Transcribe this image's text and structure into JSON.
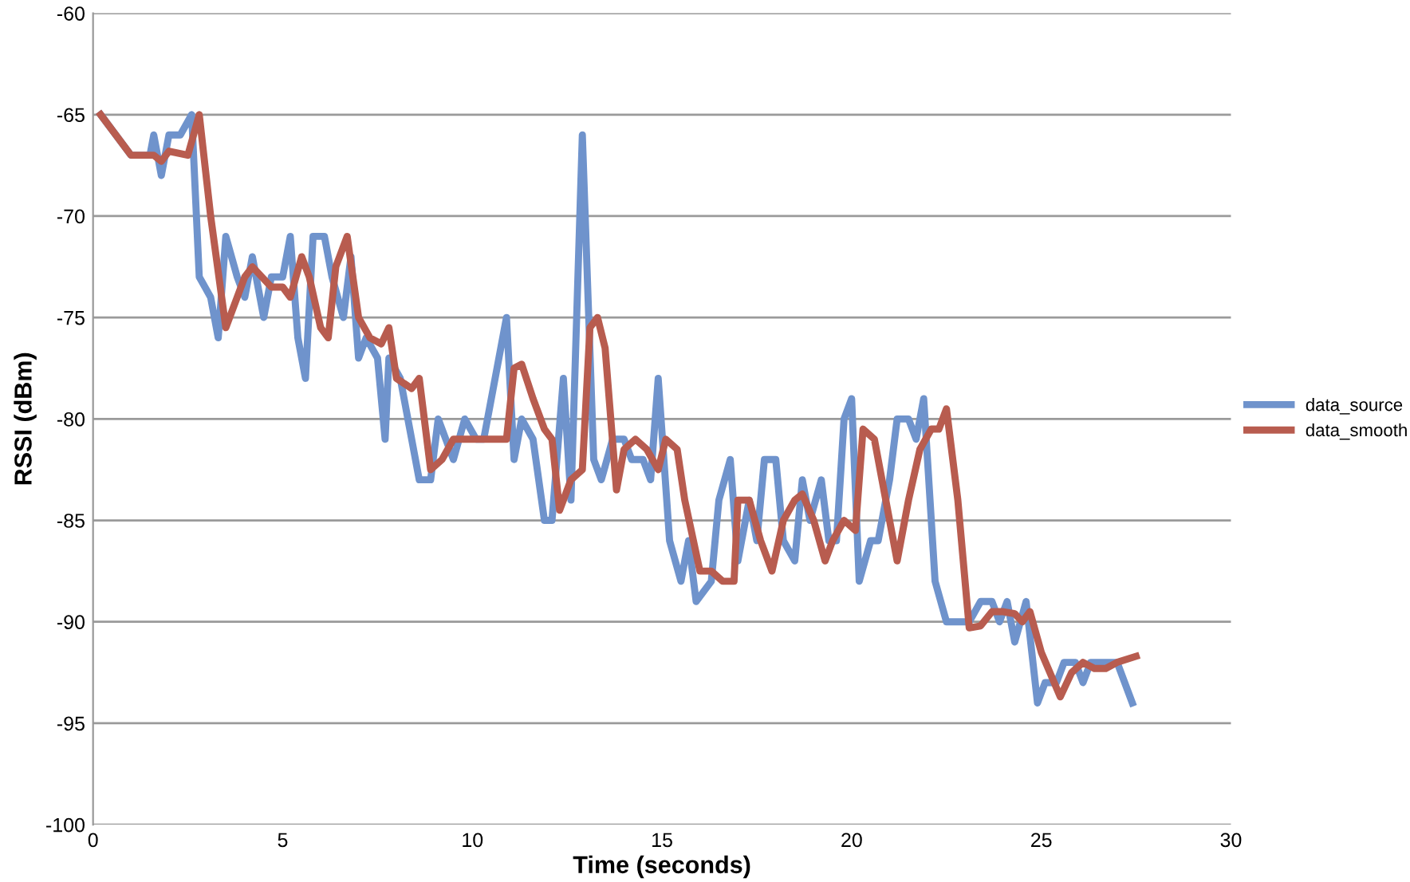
{
  "chart_data": {
    "type": "line",
    "xlabel": "Time (seconds)",
    "ylabel": "RSSI (dBm)",
    "xlim": [
      0,
      30
    ],
    "xticks": [
      0,
      5,
      10,
      15,
      20,
      25,
      30
    ],
    "ylim": [
      -100,
      -60
    ],
    "yticks": [
      -100,
      -95,
      -90,
      -85,
      -80,
      -75,
      -70,
      -65,
      -60
    ],
    "grid": "y",
    "legend": "right",
    "marker": "none",
    "line_style": "solid",
    "series": [
      {
        "name": "data_source",
        "color": "#6f93cc",
        "x": [
          0.2,
          1.0,
          1.5,
          1.6,
          1.8,
          2.0,
          2.3,
          2.6,
          2.8,
          3.1,
          3.3,
          3.5,
          3.8,
          4.0,
          4.2,
          4.5,
          4.7,
          5.0,
          5.2,
          5.4,
          5.6,
          5.8,
          6.1,
          6.3,
          6.6,
          6.8,
          7.0,
          7.2,
          7.5,
          7.7,
          7.8,
          8.1,
          8.4,
          8.6,
          8.9,
          9.1,
          9.3,
          9.5,
          9.8,
          10.1,
          10.3,
          10.6,
          10.9,
          11.1,
          11.3,
          11.6,
          11.9,
          12.1,
          12.4,
          12.6,
          12.9,
          13.2,
          13.4,
          13.7,
          14.0,
          14.2,
          14.5,
          14.7,
          14.9,
          15.2,
          15.5,
          15.7,
          15.9,
          16.3,
          16.5,
          16.8,
          17.0,
          17.3,
          17.5,
          17.7,
          18.0,
          18.2,
          18.5,
          18.7,
          18.9,
          19.2,
          19.4,
          19.6,
          19.8,
          20.0,
          20.2,
          20.5,
          20.7,
          21.0,
          21.2,
          21.5,
          21.7,
          21.9,
          22.2,
          22.5,
          22.9,
          23.1,
          23.4,
          23.7,
          23.9,
          24.1,
          24.3,
          24.6,
          24.9,
          25.1,
          25.4,
          25.6,
          25.9,
          26.1,
          26.3,
          26.8,
          27.0,
          27.4
        ],
        "values": [
          -65,
          -67,
          -67,
          -66,
          -68,
          -66,
          -66,
          -65,
          -73,
          -74,
          -76,
          -71,
          -73,
          -74,
          -72,
          -75,
          -73,
          -73,
          -71,
          -76,
          -78,
          -71,
          -71,
          -73,
          -75,
          -72,
          -77,
          -76,
          -77,
          -81,
          -77,
          -78,
          -81,
          -83,
          -83,
          -80,
          -81,
          -82,
          -80,
          -81,
          -81,
          -78,
          -75,
          -82,
          -80,
          -81,
          -85,
          -85,
          -78,
          -84,
          -66,
          -82,
          -83,
          -81,
          -81,
          -82,
          -82,
          -83,
          -78,
          -86,
          -88,
          -86,
          -89,
          -88,
          -84,
          -82,
          -87,
          -84,
          -86,
          -82,
          -82,
          -86,
          -87,
          -83,
          -85,
          -83,
          -86,
          -86,
          -80,
          -79,
          -88,
          -86,
          -86,
          -83,
          -80,
          -80,
          -81,
          -79,
          -88,
          -90,
          -90,
          -90,
          -89,
          -89,
          -90,
          -89,
          -91,
          -89,
          -94,
          -93,
          -93,
          -92,
          -92,
          -93,
          -92,
          -92,
          -92,
          -94
        ]
      },
      {
        "name": "data_smooth",
        "color": "#b85c4f",
        "x": [
          0.2,
          1.0,
          1.6,
          1.8,
          2.0,
          2.5,
          2.8,
          3.1,
          3.5,
          4.0,
          4.2,
          4.7,
          5.0,
          5.2,
          5.5,
          5.7,
          6.0,
          6.2,
          6.4,
          6.7,
          7.0,
          7.3,
          7.6,
          7.8,
          8.0,
          8.4,
          8.6,
          8.9,
          9.2,
          9.5,
          9.8,
          10.1,
          10.5,
          10.9,
          11.1,
          11.3,
          11.6,
          11.9,
          12.1,
          12.3,
          12.6,
          12.9,
          13.1,
          13.3,
          13.5,
          13.8,
          14.0,
          14.3,
          14.6,
          14.9,
          15.1,
          15.4,
          15.6,
          16.0,
          16.3,
          16.6,
          16.9,
          17.0,
          17.3,
          17.6,
          17.9,
          18.2,
          18.5,
          18.7,
          19.0,
          19.3,
          19.5,
          19.8,
          20.1,
          20.3,
          20.6,
          20.8,
          21.2,
          21.5,
          21.8,
          22.1,
          22.3,
          22.5,
          22.8,
          23.1,
          23.4,
          23.7,
          24.0,
          24.3,
          24.5,
          24.7,
          25.0,
          25.5,
          25.8,
          26.1,
          26.4,
          26.7,
          27.0,
          27.5
        ],
        "values": [
          -65,
          -67,
          -67,
          -67.3,
          -66.8,
          -67,
          -65,
          -70,
          -75.5,
          -73,
          -72.5,
          -73.5,
          -73.5,
          -74,
          -72,
          -73,
          -75.5,
          -76,
          -72.5,
          -71,
          -75,
          -76,
          -76.3,
          -75.5,
          -78,
          -78.5,
          -78,
          -82.5,
          -82,
          -81,
          -81,
          -81,
          -81,
          -81,
          -77.5,
          -77.3,
          -79,
          -80.5,
          -81,
          -84.5,
          -83,
          -82.5,
          -75.5,
          -75,
          -76.5,
          -83.5,
          -81.5,
          -81,
          -81.5,
          -82.5,
          -81,
          -81.5,
          -84,
          -87.5,
          -87.5,
          -88,
          -88,
          -84,
          -84,
          -86,
          -87.5,
          -85,
          -84,
          -83.7,
          -85,
          -87,
          -86,
          -85,
          -85.5,
          -80.5,
          -81,
          -83,
          -87,
          -84,
          -81.5,
          -80.5,
          -80.5,
          -79.5,
          -84,
          -90.3,
          -90.2,
          -89.5,
          -89.5,
          -89.6,
          -90,
          -89.5,
          -91.5,
          -93.7,
          -92.5,
          -92,
          -92.3,
          -92.3,
          -92,
          -91.7
        ]
      }
    ]
  }
}
